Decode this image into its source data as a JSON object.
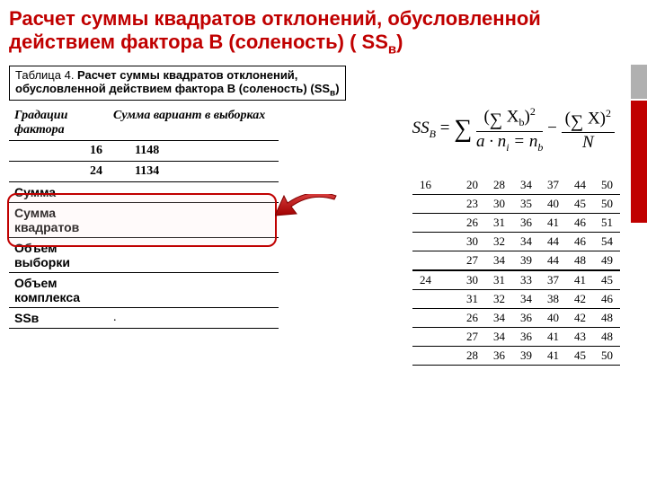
{
  "title": {
    "line1": "Расчет суммы квадратов отклонений, обусловленной",
    "line2_prefix": "действием фактора В (соленость) ( SS",
    "line2_sub": "в",
    "line2_suffix": ")"
  },
  "caption": {
    "prefix": "Таблица 4. ",
    "bold1": "Расчет суммы квадратов отклонений,",
    "bold2": "обусловленной действием фактора В (соленость) (SS",
    "sub": "в",
    "end": ")"
  },
  "leftTable": {
    "header": {
      "c1": "Градации фактора",
      "c2": "Сумма вариант в выборках"
    },
    "rows": [
      {
        "c1": "16",
        "c2": "1148"
      },
      {
        "c1": "24",
        "c2": "1134"
      }
    ],
    "summary": [
      {
        "label": "Сумма",
        "val": ""
      },
      {
        "label": "Сумма квадратов",
        "val": ""
      },
      {
        "label": "Объем выборки",
        "val": ""
      },
      {
        "label": "Объем комплекса",
        "val": ""
      },
      {
        "label": "SSв",
        "val": "."
      }
    ]
  },
  "formula": {
    "lhs": "SS",
    "lhs_sub": "B",
    "eq": " = ",
    "sigma": "∑",
    "num_open": "(",
    "num_sigma": "∑",
    "num_var": " X",
    "num_sub": "b",
    "num_close": ")",
    "num_sup": "2",
    "den_a": "a · n",
    "den_i": "i",
    "den_eq": " = n",
    "den_b": "b",
    "minus": " − ",
    "num2_open": "(",
    "num2_sigma": "∑",
    "num2_var": " X",
    "num2_close": ")",
    "num2_sup": "2",
    "den2": "N"
  },
  "rightTable": {
    "cat1": "16",
    "cat2": "24",
    "block1": [
      [
        "20",
        "28",
        "34",
        "37",
        "44",
        "50"
      ],
      [
        "23",
        "30",
        "35",
        "40",
        "45",
        "50"
      ],
      [
        "26",
        "31",
        "36",
        "41",
        "46",
        "51"
      ],
      [
        "30",
        "32",
        "34",
        "44",
        "46",
        "54"
      ],
      [
        "27",
        "34",
        "39",
        "44",
        "48",
        "49"
      ]
    ],
    "block2": [
      [
        "30",
        "31",
        "33",
        "37",
        "41",
        "45"
      ],
      [
        "31",
        "32",
        "34",
        "38",
        "42",
        "46"
      ],
      [
        "26",
        "34",
        "36",
        "40",
        "42",
        "48"
      ],
      [
        "27",
        "34",
        "36",
        "41",
        "43",
        "48"
      ],
      [
        "28",
        "36",
        "39",
        "41",
        "45",
        "50"
      ]
    ]
  },
  "colors": {
    "accent": "#c00000",
    "gray": "#b0b0b0"
  },
  "arrow": {
    "color": "#c00000"
  }
}
